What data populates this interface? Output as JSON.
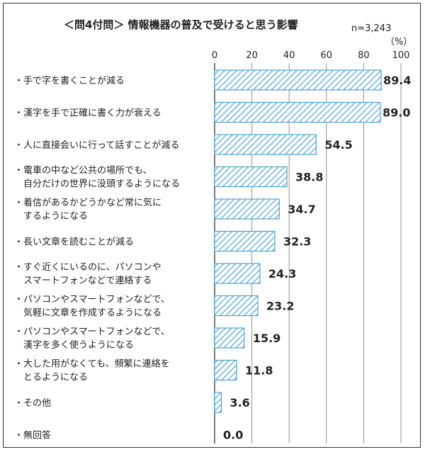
{
  "chart_data": {
    "type": "bar",
    "orientation": "horizontal",
    "title": "＜問4付問＞ 情報機器の普及で受けると思う影響",
    "sample_size": "n=3,243",
    "unit": "（%）",
    "xlim": [
      0,
      100
    ],
    "xticks": [
      "0",
      "20",
      "40",
      "60",
      "80",
      "100"
    ],
    "grid": true,
    "bar_style": "diagonal-hatch",
    "colors": {
      "bar_stroke": "#4aa3d6",
      "hatch": "#4aa3d6",
      "bar_fill": "#ffffff",
      "grid": "#888888"
    },
    "categories": [
      [
        "・手で字を書くことが減る"
      ],
      [
        "・漢字を手で正確に書く力が衰える"
      ],
      [
        "・人に直接会いに行って話すことが減る"
      ],
      [
        "・電車の中など公共の場所でも、",
        "　自分だけの世界に没頭するようになる"
      ],
      [
        "・着信があるかどうかなど常に気に",
        "　するようになる"
      ],
      [
        "・長い文章を読むことが減る"
      ],
      [
        "・すぐ近くにいるのに、パソコンや",
        "　スマートフォンなどで連絡する"
      ],
      [
        "・パソコンやスマートフォンなどで、",
        "　気軽に文章を作成するようになる"
      ],
      [
        "・パソコンやスマートフォンなどで、",
        "　漢字を多く使うようになる"
      ],
      [
        "・大した用がなくても、頻繁に連絡を",
        "　とるようになる"
      ],
      [
        "・その他"
      ],
      [
        "・無回答"
      ]
    ],
    "values": [
      89.4,
      89.0,
      54.5,
      38.8,
      34.7,
      32.3,
      24.3,
      23.2,
      15.9,
      11.8,
      3.6,
      0.0
    ],
    "value_labels": [
      "89.4",
      "89.0",
      "54.5",
      "38.8",
      "34.7",
      "32.3",
      "24.3",
      "23.2",
      "15.9",
      "11.8",
      "3.6",
      "0.0"
    ]
  }
}
